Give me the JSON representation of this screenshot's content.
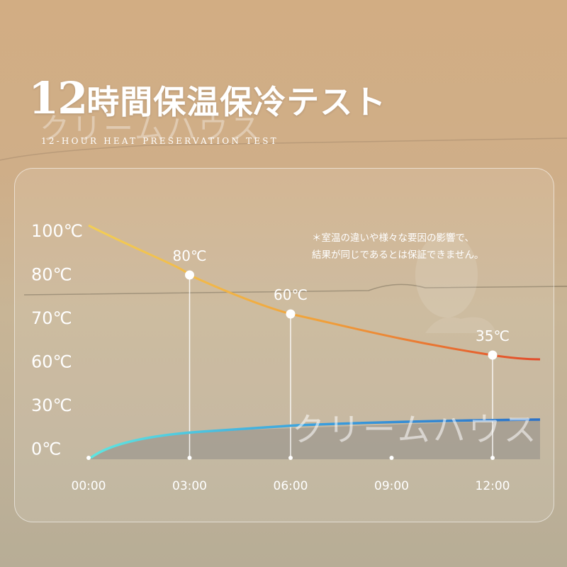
{
  "header": {
    "title_num": "12",
    "title_text": "時間保温保冷テスト",
    "subtitle": "12-HOUR HEAT PRESERVATION TEST",
    "watermark": "クリームハウス"
  },
  "note": {
    "line1": "＊室温の違いや様々な要因の影響で、",
    "line2": "結果が同じであるとは保証できません。"
  },
  "chart_data": {
    "type": "line",
    "categories": [
      "00:00",
      "03:00",
      "06:00",
      "09:00",
      "12:00"
    ],
    "y_tick_labels": [
      "100℃",
      "80℃",
      "70℃",
      "60℃",
      "30℃",
      "0℃"
    ],
    "series": [
      {
        "kind": "heat",
        "x_hours": [
          0,
          3,
          6,
          12,
          13.3
        ],
        "labeled_points": [
          {
            "hour": 3,
            "label": "80℃"
          },
          {
            "hour": 6,
            "label": "60℃"
          },
          {
            "hour": 12,
            "label": "35℃"
          }
        ],
        "colors": [
          "#f3cf55",
          "#f0a03a",
          "#e24b2a"
        ]
      },
      {
        "kind": "cold",
        "colors": [
          "#5fe6e0",
          "#3a9fde",
          "#2c72c8"
        ]
      }
    ],
    "watermark": "クリームハウス"
  }
}
